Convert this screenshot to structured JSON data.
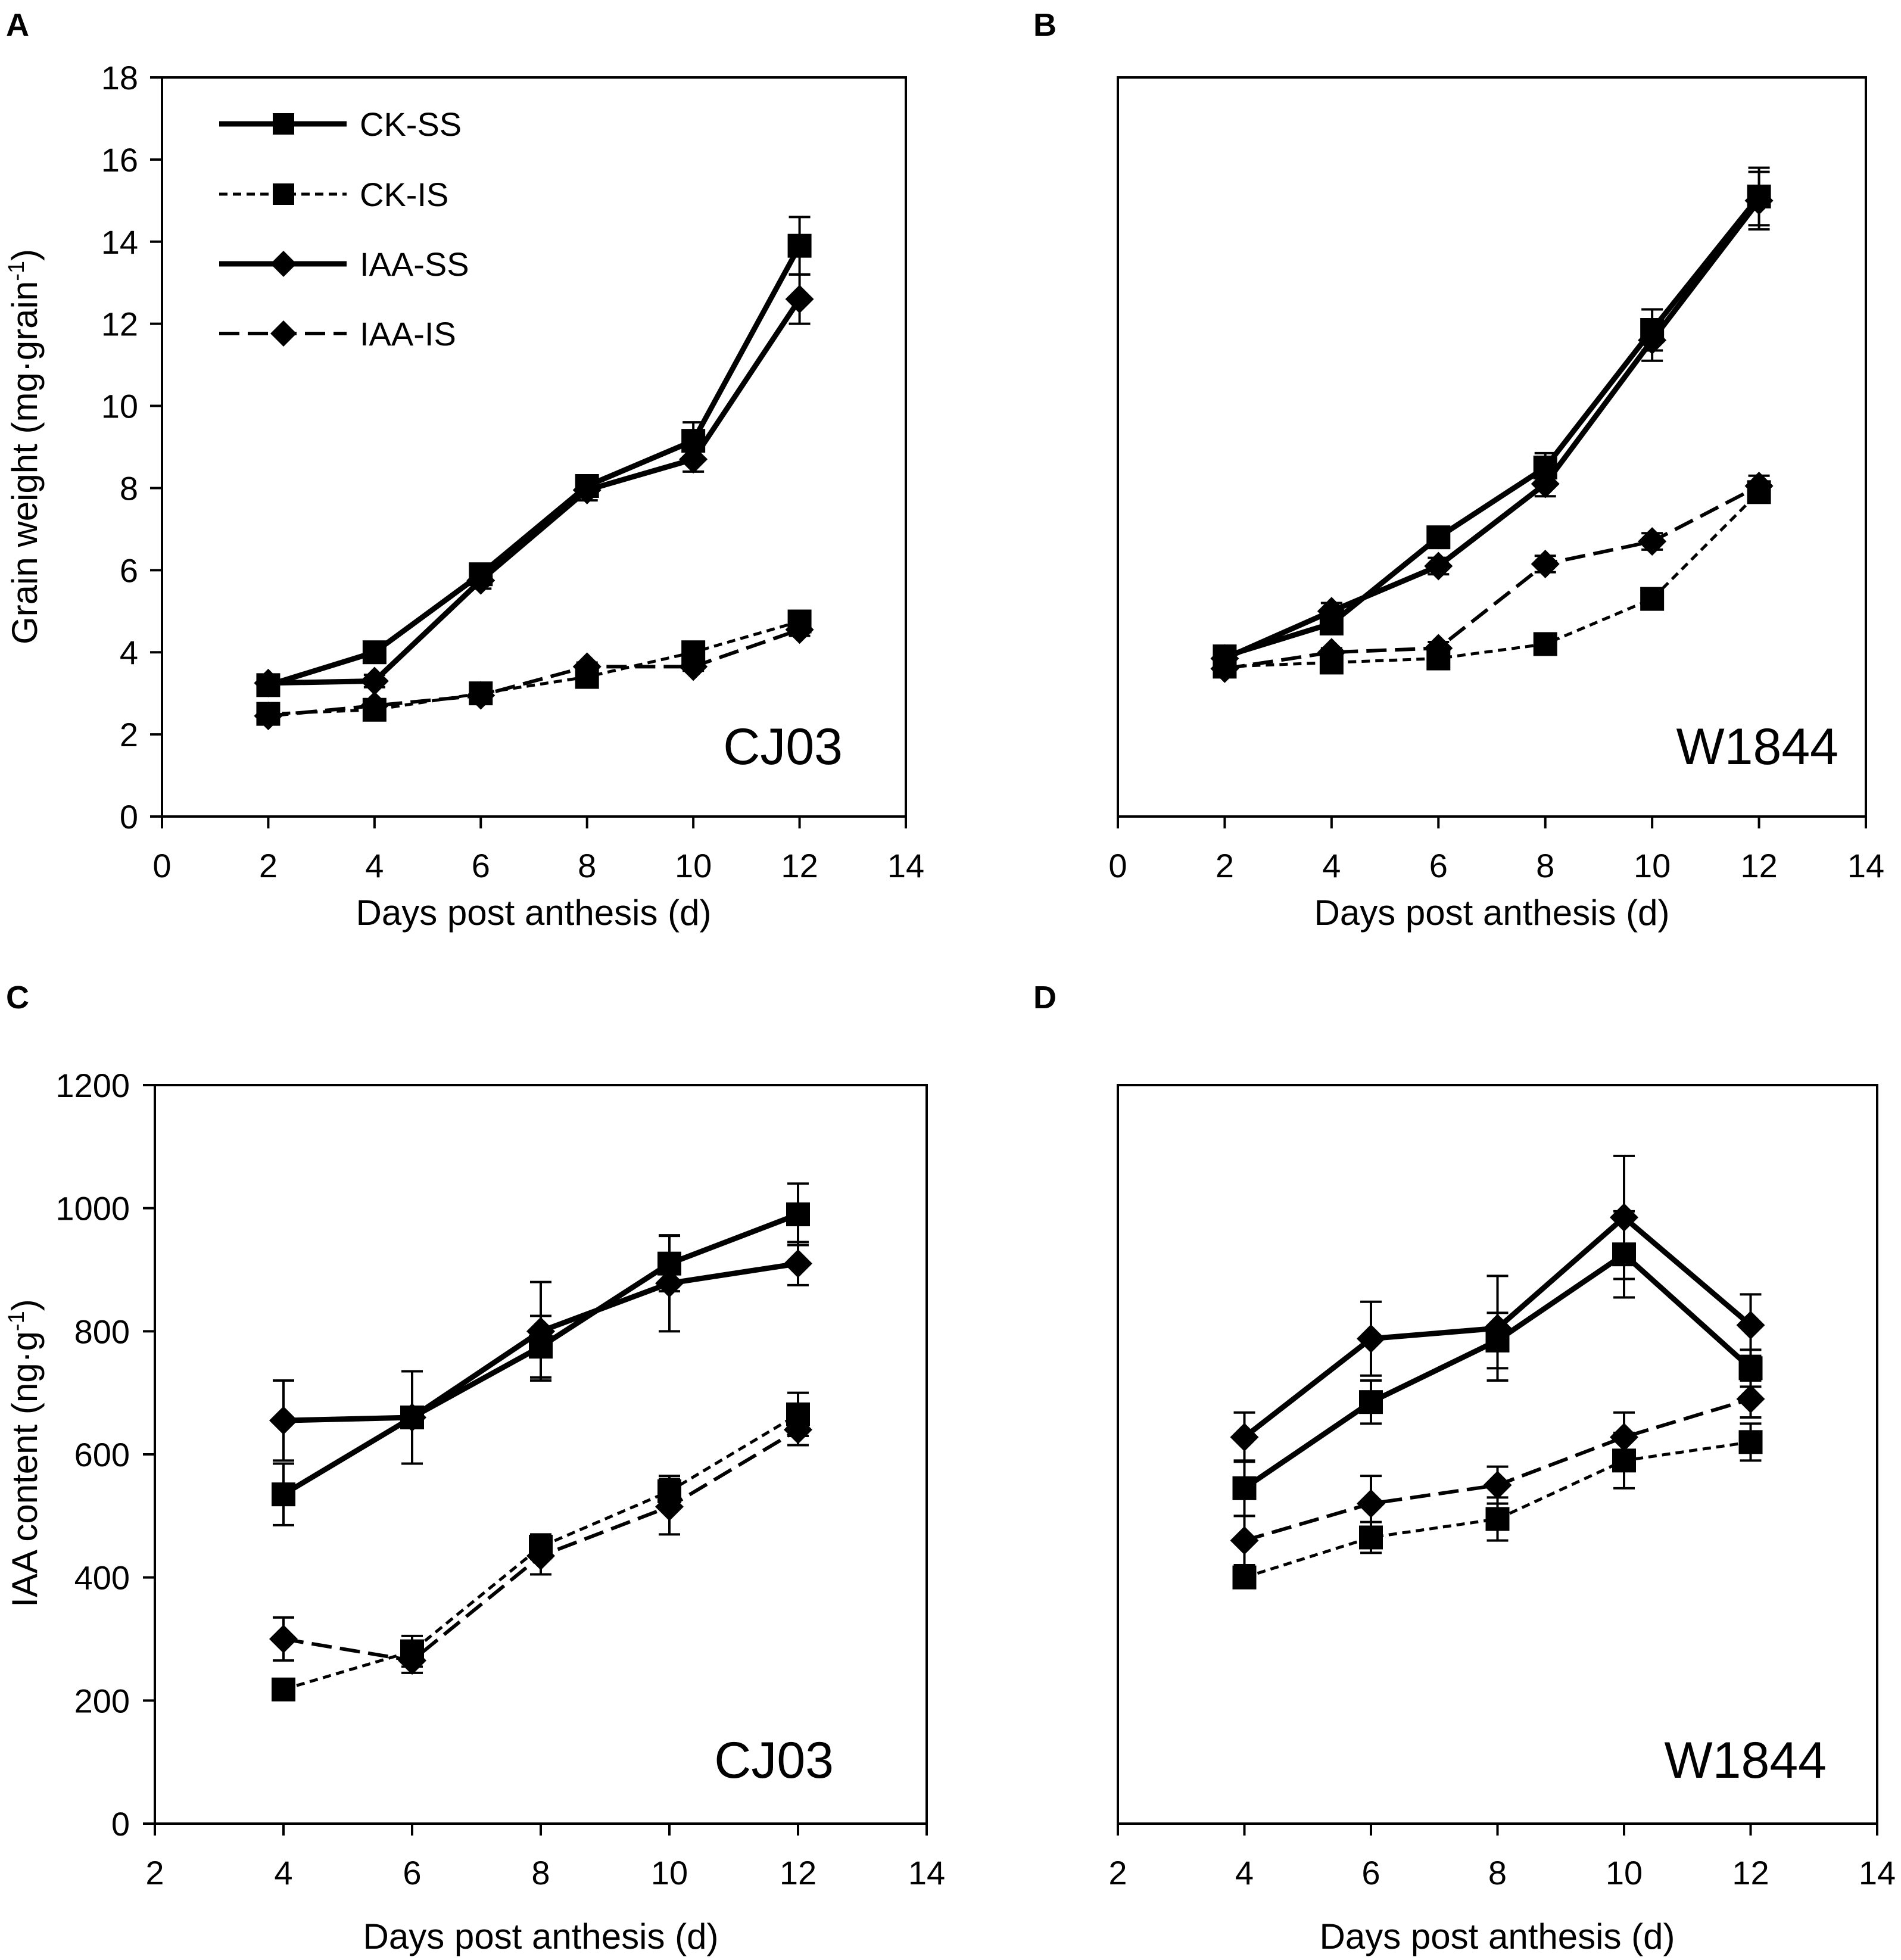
{
  "figure": {
    "legend": [
      {
        "label": "CK-SS",
        "marker": "square",
        "line": "solid"
      },
      {
        "label": "CK-IS",
        "marker": "square",
        "line": "short-dash"
      },
      {
        "label": "IAA-SS",
        "marker": "diamond",
        "line": "solid"
      },
      {
        "label": "IAA-IS",
        "marker": "diamond",
        "line": "long-dash"
      }
    ]
  },
  "chart_data": [
    {
      "panel": "A",
      "type": "line",
      "title": "CJ03",
      "xlabel": "Days post anthesis (d)",
      "ylabel_main": "Grain weight (mg·grain",
      "ylabel_sup": "-1",
      "ylabel_end": ")",
      "xlim": [
        0,
        14
      ],
      "ylim": [
        0,
        18
      ],
      "xticks": [
        "0",
        "2",
        "4",
        "6",
        "8",
        "10",
        "12",
        "14"
      ],
      "yticks": [
        "0",
        "2",
        "4",
        "6",
        "8",
        "10",
        "12",
        "14",
        "16",
        "18"
      ],
      "x": [
        2,
        4,
        6,
        8,
        10,
        12
      ],
      "series": [
        {
          "name": "CK-SS",
          "values": [
            3.2,
            4.0,
            5.9,
            8.05,
            9.15,
            13.9
          ],
          "errors": [
            0.15,
            0.15,
            0.15,
            0.2,
            0.45,
            0.7
          ]
        },
        {
          "name": "CK-IS",
          "values": [
            2.5,
            2.6,
            3.0,
            3.4,
            4.0,
            4.75
          ],
          "errors": [
            0.1,
            0.1,
            0.1,
            0.1,
            0.15,
            0.15
          ]
        },
        {
          "name": "IAA-SS",
          "values": [
            3.25,
            3.3,
            5.75,
            7.95,
            8.7,
            12.6
          ],
          "errors": [
            0.15,
            0.15,
            0.2,
            0.25,
            0.3,
            0.6
          ]
        },
        {
          "name": "IAA-IS",
          "values": [
            2.45,
            2.7,
            2.95,
            3.65,
            3.65,
            4.55
          ],
          "errors": [
            0.1,
            0.1,
            0.1,
            0.1,
            0.1,
            0.15
          ]
        }
      ]
    },
    {
      "panel": "B",
      "type": "line",
      "title": "W1844",
      "xlabel": "Days post anthesis (d)",
      "xlim": [
        0,
        14
      ],
      "ylim": [
        0,
        18
      ],
      "xticks": [
        "0",
        "2",
        "4",
        "6",
        "8",
        "10",
        "12",
        "14"
      ],
      "x": [
        2,
        4,
        6,
        8,
        10,
        12
      ],
      "series": [
        {
          "name": "CK-SS",
          "values": [
            3.9,
            4.7,
            6.8,
            8.5,
            11.85,
            15.1
          ],
          "errors": [
            0.15,
            0.2,
            0.2,
            0.35,
            0.5,
            0.7
          ]
        },
        {
          "name": "CK-IS",
          "values": [
            3.65,
            3.75,
            3.85,
            4.2,
            5.3,
            7.9
          ],
          "errors": [
            0.1,
            0.1,
            0.1,
            0.1,
            0.15,
            0.25
          ]
        },
        {
          "name": "IAA-SS",
          "values": [
            3.85,
            5.0,
            6.1,
            8.1,
            11.6,
            15.0
          ],
          "errors": [
            0.15,
            0.2,
            0.2,
            0.3,
            0.5,
            0.7
          ]
        },
        {
          "name": "IAA-IS",
          "values": [
            3.6,
            4.0,
            4.1,
            6.15,
            6.7,
            8.05
          ],
          "errors": [
            0.1,
            0.1,
            0.15,
            0.2,
            0.2,
            0.25
          ]
        }
      ]
    },
    {
      "panel": "C",
      "type": "line",
      "title": "CJ03",
      "xlabel": "Days post anthesis (d)",
      "ylabel_main": "IAA content (ng·g",
      "ylabel_sup": "-1",
      "ylabel_end": ")",
      "xlim": [
        2,
        14
      ],
      "ylim": [
        0,
        1200
      ],
      "xticks": [
        "2",
        "4",
        "6",
        "8",
        "10",
        "12",
        "14"
      ],
      "yticks": [
        "0",
        "200",
        "400",
        "600",
        "800",
        "1000",
        "1200"
      ],
      "x": [
        4,
        6,
        8,
        10,
        12
      ],
      "series": [
        {
          "name": "CK-SS",
          "values": [
            535,
            660,
            775,
            910,
            990
          ],
          "errors": [
            50,
            75,
            50,
            45,
            50
          ]
        },
        {
          "name": "CK-IS",
          "values": [
            218,
            280,
            450,
            540,
            665
          ],
          "errors": [
            10,
            25,
            20,
            25,
            35
          ]
        },
        {
          "name": "IAA-SS",
          "values": [
            655,
            660,
            800,
            878,
            910
          ],
          "errors": [
            65,
            75,
            80,
            78,
            35
          ]
        },
        {
          "name": "IAA-IS",
          "values": [
            300,
            265,
            435,
            515,
            640
          ],
          "errors": [
            35,
            20,
            30,
            45,
            25
          ]
        }
      ]
    },
    {
      "panel": "D",
      "type": "line",
      "title": "W1844",
      "xlabel": "Days post anthesis (d)",
      "xlim": [
        2,
        14
      ],
      "ylim": [
        0,
        1200
      ],
      "xticks": [
        "2",
        "4",
        "6",
        "8",
        "10",
        "12",
        "14"
      ],
      "x": [
        4,
        6,
        8,
        10,
        12
      ],
      "series": [
        {
          "name": "CK-SS",
          "values": [
            545,
            685,
            785,
            925,
            740
          ],
          "errors": [
            45,
            35,
            45,
            70,
            30
          ]
        },
        {
          "name": "CK-IS",
          "values": [
            400,
            465,
            495,
            590,
            620
          ],
          "errors": [
            15,
            25,
            35,
            45,
            30
          ]
        },
        {
          "name": "IAA-SS",
          "values": [
            628,
            788,
            805,
            985,
            810
          ],
          "errors": [
            40,
            60,
            85,
            100,
            50
          ]
        },
        {
          "name": "IAA-IS",
          "values": [
            460,
            520,
            550,
            628,
            690
          ],
          "errors": [
            40,
            45,
            30,
            40,
            30
          ]
        }
      ]
    }
  ]
}
